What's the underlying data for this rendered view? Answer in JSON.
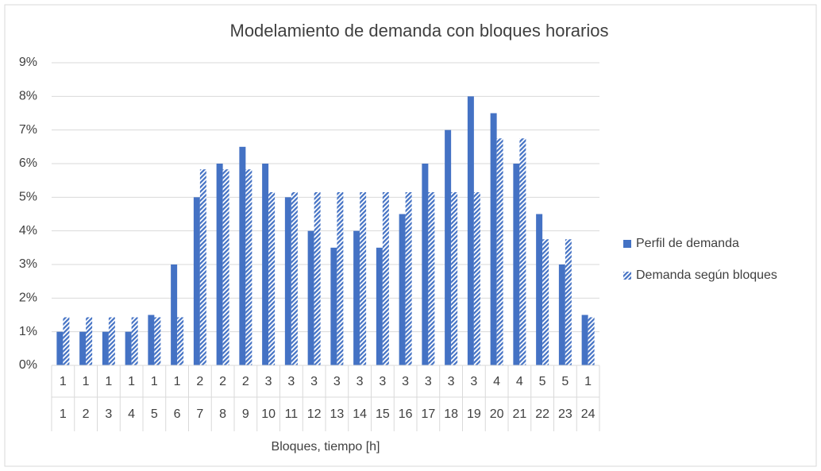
{
  "chart_data": {
    "type": "bar",
    "title": "Modelamiento de demanda con bloques horarios",
    "x_label": "Bloques, tiempo [h]",
    "blocks": [
      "1",
      "1",
      "1",
      "1",
      "1",
      "1",
      "2",
      "2",
      "2",
      "3",
      "3",
      "3",
      "3",
      "3",
      "3",
      "3",
      "3",
      "3",
      "3",
      "4",
      "4",
      "5",
      "5",
      "1"
    ],
    "categories": [
      "1",
      "2",
      "3",
      "4",
      "5",
      "6",
      "7",
      "8",
      "9",
      "10",
      "11",
      "12",
      "13",
      "14",
      "15",
      "16",
      "17",
      "18",
      "19",
      "20",
      "21",
      "22",
      "23",
      "24"
    ],
    "series": [
      {
        "name": "Perfil de demanda",
        "color": "#4472c4",
        "values": [
          1,
          1,
          1,
          1,
          1.5,
          3,
          5,
          6,
          6.5,
          6,
          5,
          4,
          3.5,
          4,
          3.5,
          4.5,
          6,
          7,
          8,
          7.5,
          6,
          4.5,
          3,
          1.5
        ]
      },
      {
        "name": "Demanda según bloques",
        "color": "#4472c4",
        "pattern": "diagonal",
        "values": [
          1.43,
          1.43,
          1.43,
          1.43,
          1.43,
          1.43,
          5.83,
          5.83,
          5.83,
          5.15,
          5.15,
          5.15,
          5.15,
          5.15,
          5.15,
          5.15,
          5.15,
          5.15,
          5.15,
          6.75,
          6.75,
          3.75,
          3.75,
          1.43
        ]
      }
    ],
    "ylim": [
      0,
      9
    ],
    "yticks": [
      {
        "value": 0,
        "label": "0%"
      },
      {
        "value": 1,
        "label": "1%"
      },
      {
        "value": 2,
        "label": "2%"
      },
      {
        "value": 3,
        "label": "3%"
      },
      {
        "value": 4,
        "label": "4%"
      },
      {
        "value": 5,
        "label": "5%"
      },
      {
        "value": 6,
        "label": "6%"
      },
      {
        "value": 7,
        "label": "7%"
      },
      {
        "value": 8,
        "label": "8%"
      },
      {
        "value": 9,
        "label": "9%"
      }
    ],
    "grid": true,
    "legend": "right"
  }
}
